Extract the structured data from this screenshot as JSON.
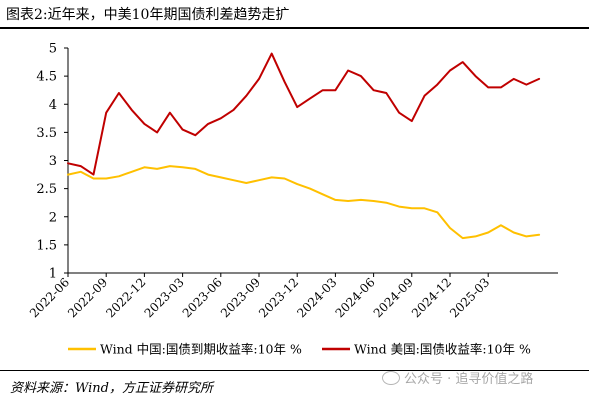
{
  "title": "图表2:近年来，中美10年期国债利差趋势走扩",
  "source": "资料来源：Wind，方正证券研究所",
  "watermark": "公众号 · 追寻价值之路",
  "chart_data": {
    "type": "line",
    "ylim": [
      1,
      5
    ],
    "yticks": [
      "1",
      "1.5",
      "2",
      "2.5",
      "3",
      "3.5",
      "4",
      "4.5",
      "5"
    ],
    "xticks": [
      "2022-06",
      "2022-09",
      "2022-12",
      "2023-03",
      "2023-06",
      "2023-09",
      "2023-12",
      "2024-03",
      "2024-06",
      "2024-09",
      "2024-12",
      "2025-03"
    ],
    "grid": false,
    "legend_position": "bottom",
    "series": [
      {
        "name": "Wind 中国:国债到期收益率:10年 %",
        "color": "#FFC000",
        "x": [
          "2022-06",
          "2022-07",
          "2022-08",
          "2022-09",
          "2022-10",
          "2022-11",
          "2022-12",
          "2023-01",
          "2023-02",
          "2023-03",
          "2023-04",
          "2023-05",
          "2023-06",
          "2023-07",
          "2023-08",
          "2023-09",
          "2023-10",
          "2023-11",
          "2023-12",
          "2024-01",
          "2024-02",
          "2024-03",
          "2024-04",
          "2024-05",
          "2024-06",
          "2024-07",
          "2024-08",
          "2024-09",
          "2024-10",
          "2024-11",
          "2024-12",
          "2025-01",
          "2025-02",
          "2025-03",
          "2025-04",
          "2025-05",
          "2025-06",
          "2025-07"
        ],
        "values": [
          2.75,
          2.8,
          2.68,
          2.68,
          2.72,
          2.8,
          2.88,
          2.85,
          2.9,
          2.88,
          2.85,
          2.75,
          2.7,
          2.65,
          2.6,
          2.65,
          2.7,
          2.68,
          2.58,
          2.5,
          2.4,
          2.3,
          2.28,
          2.3,
          2.28,
          2.25,
          2.18,
          2.15,
          2.15,
          2.08,
          1.8,
          1.62,
          1.65,
          1.72,
          1.85,
          1.72,
          1.65,
          1.68
        ]
      },
      {
        "name": "Wind 美国:国债收益率:10年 %",
        "color": "#C00000",
        "x": [
          "2022-06",
          "2022-07",
          "2022-08",
          "2022-09",
          "2022-10",
          "2022-11",
          "2022-12",
          "2023-01",
          "2023-02",
          "2023-03",
          "2023-04",
          "2023-05",
          "2023-06",
          "2023-07",
          "2023-08",
          "2023-09",
          "2023-10",
          "2023-11",
          "2023-12",
          "2024-01",
          "2024-02",
          "2024-03",
          "2024-04",
          "2024-05",
          "2024-06",
          "2024-07",
          "2024-08",
          "2024-09",
          "2024-10",
          "2024-11",
          "2024-12",
          "2025-01",
          "2025-02",
          "2025-03",
          "2025-04",
          "2025-05",
          "2025-06",
          "2025-07"
        ],
        "values": [
          2.95,
          2.9,
          2.75,
          3.85,
          4.2,
          3.9,
          3.65,
          3.5,
          3.85,
          3.55,
          3.45,
          3.65,
          3.75,
          3.9,
          4.15,
          4.45,
          4.9,
          4.4,
          3.95,
          4.1,
          4.25,
          4.25,
          4.6,
          4.5,
          4.25,
          4.2,
          3.85,
          3.7,
          4.15,
          4.35,
          4.6,
          4.75,
          4.5,
          4.3,
          4.3,
          4.45,
          4.35,
          4.45
        ]
      }
    ]
  }
}
